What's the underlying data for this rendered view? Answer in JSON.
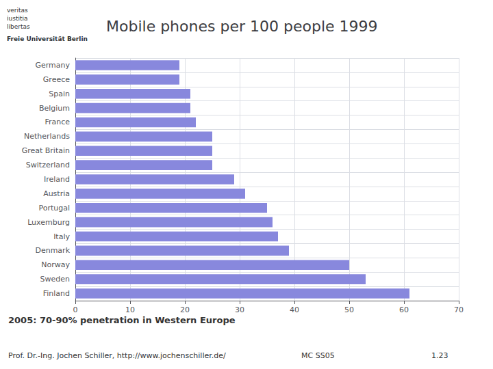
{
  "chart_data": {
    "type": "bar",
    "orientation": "horizontal",
    "title": "Mobile phones per 100 people 1999",
    "categories": [
      "Germany",
      "Greece",
      "Spain",
      "Belgium",
      "France",
      "Netherlands",
      "Great Britain",
      "Switzerland",
      "Ireland",
      "Austria",
      "Portugal",
      "Luxemburg",
      "Italy",
      "Denmark",
      "Norway",
      "Sweden",
      "Finland"
    ],
    "values": [
      19,
      19,
      21,
      21,
      22,
      25,
      25,
      25,
      29,
      31,
      35,
      36,
      37,
      39,
      50,
      53,
      61
    ],
    "color": "#8888dd",
    "xlim": [
      0,
      70
    ],
    "xticks": [
      0,
      10,
      20,
      30,
      40,
      50,
      60,
      70
    ],
    "grid": true,
    "annotations": [
      "veritas",
      "iustitia",
      "libertas",
      "Freie Universität Berlin",
      "2005: 70-90% penetration in Western Europe",
      "Prof. Dr.-Ing. Jochen Schiller, http://www.jochenschiller.de/",
      "MC SS05",
      "1.23"
    ]
  }
}
